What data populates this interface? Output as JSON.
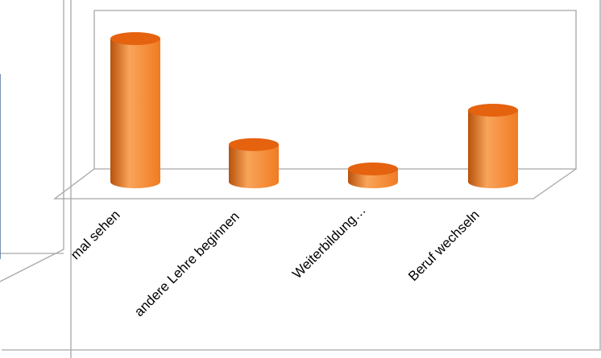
{
  "chart_data": {
    "type": "bar",
    "style": "3d-cylinder",
    "title": "",
    "xlabel": "",
    "ylabel": "",
    "categories": [
      "mal sehen",
      "andere Lehre beginnen",
      "Weiterbildung…",
      "Beruf wechseln"
    ],
    "series": [
      {
        "values": [
          100,
          26,
          9,
          50
        ]
      }
    ],
    "ylim": [
      0,
      100
    ],
    "grid": false,
    "legend": "none",
    "colors": {
      "bar": "#f07b22",
      "bar_light": "#f9a45a",
      "bar_dark": "#b8520c",
      "bar_top": "#e5620f",
      "frame": "#a6a6a6"
    }
  }
}
